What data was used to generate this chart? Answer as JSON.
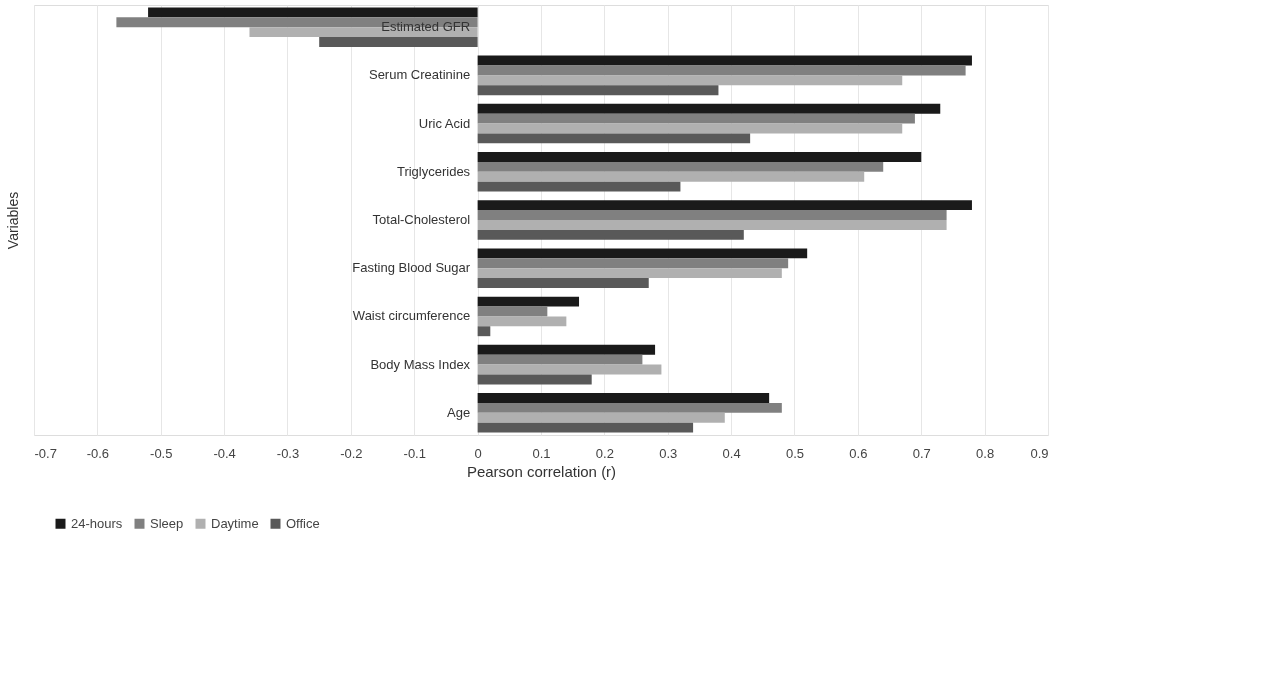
{
  "chart_data": {
    "type": "bar",
    "orientation": "horizontal",
    "xlabel": "Pearson correlation (r)",
    "ylabel": "Variables",
    "categories": [
      "Estimated GFR",
      "Serum Creatinine",
      "Uric Acid",
      "Triglycerides",
      "Total-Cholesterol",
      "Fasting Blood Sugar",
      "Waist circumference",
      "Body Mass Index",
      "Age"
    ],
    "series": [
      {
        "name": "24-hours",
        "color": "#1a1a1a",
        "values": [
          -0.52,
          0.78,
          0.73,
          0.7,
          0.78,
          0.52,
          0.16,
          0.28,
          0.46
        ]
      },
      {
        "name": "Sleep",
        "color": "#808080",
        "values": [
          -0.57,
          0.77,
          0.69,
          0.64,
          0.74,
          0.49,
          0.11,
          0.26,
          0.48
        ]
      },
      {
        "name": "Daytime",
        "color": "#b0b0b0",
        "values": [
          -0.36,
          0.67,
          0.67,
          0.61,
          0.74,
          0.48,
          0.14,
          0.29,
          0.39
        ]
      },
      {
        "name": "Office",
        "color": "#595959",
        "values": [
          -0.25,
          0.38,
          0.43,
          0.32,
          0.42,
          0.27,
          0.02,
          0.18,
          0.34
        ]
      }
    ],
    "xlim": [
      -0.7,
      0.9
    ],
    "xticks": [
      -0.7,
      -0.6,
      -0.5,
      -0.4,
      -0.3,
      -0.2,
      -0.1,
      0,
      0.1,
      0.2,
      0.3,
      0.4,
      0.5,
      0.6,
      0.7,
      0.8,
      0.9
    ],
    "grid": "x",
    "legend": "bottom"
  }
}
